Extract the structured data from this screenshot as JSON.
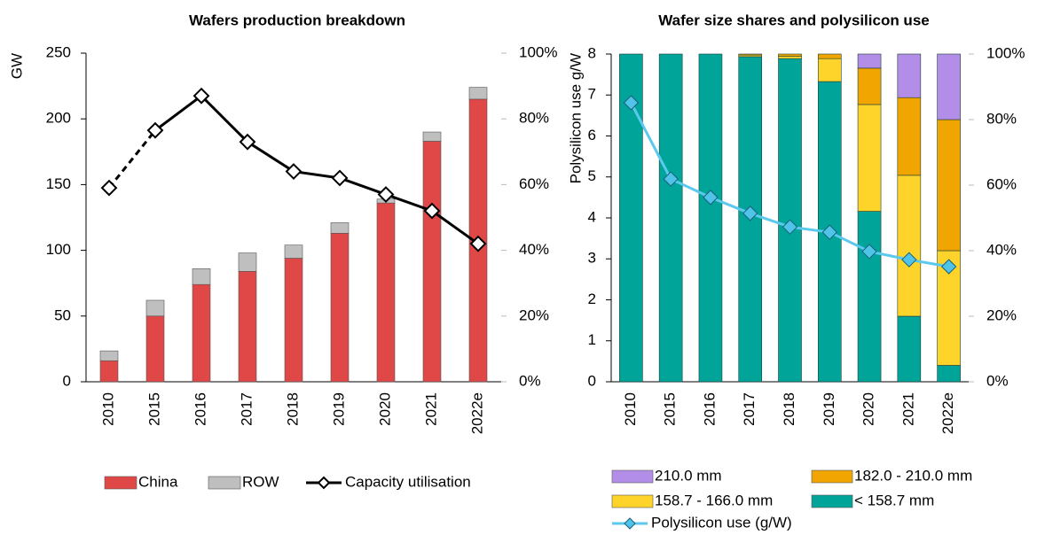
{
  "chart_data": [
    {
      "type": "bar",
      "stacked": true,
      "title": "Wafers production breakdown",
      "y_label": "GW",
      "categories": [
        "2010",
        "2015",
        "2016",
        "2017",
        "2018",
        "2019",
        "2020",
        "2021",
        "2022e"
      ],
      "series": [
        {
          "name": "China",
          "color": "#e04848",
          "values": [
            16,
            50,
            74,
            84,
            94,
            113,
            136,
            183,
            215
          ]
        },
        {
          "name": "ROW",
          "color": "#bfbfbf",
          "values": [
            7.5,
            12,
            12,
            14,
            10,
            8,
            3,
            7,
            9
          ]
        },
        {
          "name": "Capacity utilisation",
          "type": "line",
          "axis": "y2",
          "color": "#000000",
          "marker_fill": "#ffffff",
          "first_segment_dashed": true,
          "values": [
            59,
            76.5,
            87,
            73,
            64,
            62,
            57,
            52,
            42
          ]
        }
      ],
      "ylim": [
        0,
        250
      ],
      "yticks": [
        0,
        50,
        100,
        150,
        200,
        250
      ],
      "y2lim": [
        0,
        100
      ],
      "y2ticks": [
        {
          "value": 0,
          "label": "0%"
        },
        {
          "value": 20,
          "label": "20%"
        },
        {
          "value": 40,
          "label": "40%"
        },
        {
          "value": 60,
          "label": "60%"
        },
        {
          "value": 80,
          "label": "80%"
        },
        {
          "value": 100,
          "label": "100%"
        }
      ],
      "grid": false
    },
    {
      "type": "bar",
      "stacked": true,
      "title": "Wafer size shares and polysilicon use",
      "y_label": "Polysilicon use g/W",
      "categories": [
        "2010",
        "2015",
        "2016",
        "2017",
        "2018",
        "2019",
        "2020",
        "2021",
        "2022e"
      ],
      "series": [
        {
          "name": "< 158.7 mm",
          "axis": "y2",
          "color": "#00a499",
          "values": [
            100,
            100,
            100,
            99.2,
            98.6,
            91.6,
            52,
            20,
            5
          ]
        },
        {
          "name": "158.7 - 166.0 mm",
          "axis": "y2",
          "color": "#ffd42a",
          "values": [
            0,
            0,
            0,
            0.5,
            0.7,
            7,
            32.6,
            43,
            35
          ]
        },
        {
          "name": "182.0 - 210.0 mm",
          "axis": "y2",
          "color": "#f0a500",
          "values": [
            0,
            0,
            0,
            0.3,
            0.7,
            1.4,
            11.1,
            23.7,
            40
          ]
        },
        {
          "name": "210.0 mm",
          "axis": "y2",
          "color": "#b38ee8",
          "values": [
            0,
            0,
            0,
            0,
            0,
            0,
            4.3,
            13.3,
            20
          ]
        },
        {
          "name": "Polysilicon use (g/W)",
          "type": "line",
          "color": "#5bc8ee",
          "marker_fill": "#4fc3e8",
          "values": [
            6.81,
            4.95,
            4.5,
            4.11,
            3.78,
            3.65,
            3.18,
            2.98,
            2.81
          ]
        }
      ],
      "ylim": [
        0,
        8
      ],
      "yticks": [
        0,
        1,
        2,
        3,
        4,
        5,
        6,
        7,
        8
      ],
      "y2lim": [
        0,
        100
      ],
      "y2ticks": [
        {
          "value": 0,
          "label": "0%"
        },
        {
          "value": 20,
          "label": "20%"
        },
        {
          "value": 40,
          "label": "40%"
        },
        {
          "value": 60,
          "label": "60%"
        },
        {
          "value": 80,
          "label": "80%"
        },
        {
          "value": 100,
          "label": "100%"
        }
      ],
      "grid": false
    }
  ]
}
